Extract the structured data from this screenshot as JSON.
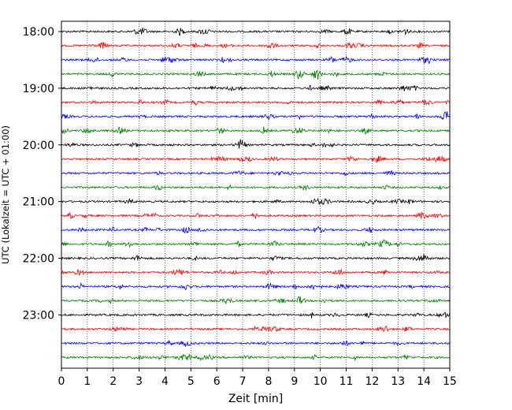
{
  "chart_data": {
    "type": "line",
    "title": "",
    "xlabel": "Zeit  [min]",
    "ylabel": "UTC (Lokalzeit = UTC + 01:00)",
    "xlim": [
      0,
      15
    ],
    "x_ticks": [
      "0",
      "1",
      "2",
      "3",
      "4",
      "5",
      "6",
      "7",
      "8",
      "9",
      "10",
      "11",
      "12",
      "13",
      "14",
      "15"
    ],
    "y_tick_labels": [
      "18:00",
      "19:00",
      "20:00",
      "21:00",
      "22:00",
      "23:00"
    ],
    "row_interval_min": 15,
    "grid": "vertical dotted lines at each minute",
    "series_colors": [
      "#000000",
      "#ff0000",
      "#0000ff",
      "#008000"
    ],
    "rows": [
      {
        "start": "18:00"
      },
      {
        "start": "18:15"
      },
      {
        "start": "18:30"
      },
      {
        "start": "18:45"
      },
      {
        "start": "19:00"
      },
      {
        "start": "19:15"
      },
      {
        "start": "19:30"
      },
      {
        "start": "19:45"
      },
      {
        "start": "20:00"
      },
      {
        "start": "20:15"
      },
      {
        "start": "20:30"
      },
      {
        "start": "20:45"
      },
      {
        "start": "21:00"
      },
      {
        "start": "21:15"
      },
      {
        "start": "21:30"
      },
      {
        "start": "21:45"
      },
      {
        "start": "22:00"
      },
      {
        "start": "22:15"
      },
      {
        "start": "22:30"
      },
      {
        "start": "22:45"
      },
      {
        "start": "23:00"
      },
      {
        "start": "23:15"
      },
      {
        "start": "23:30"
      },
      {
        "start": "23:45"
      }
    ]
  }
}
